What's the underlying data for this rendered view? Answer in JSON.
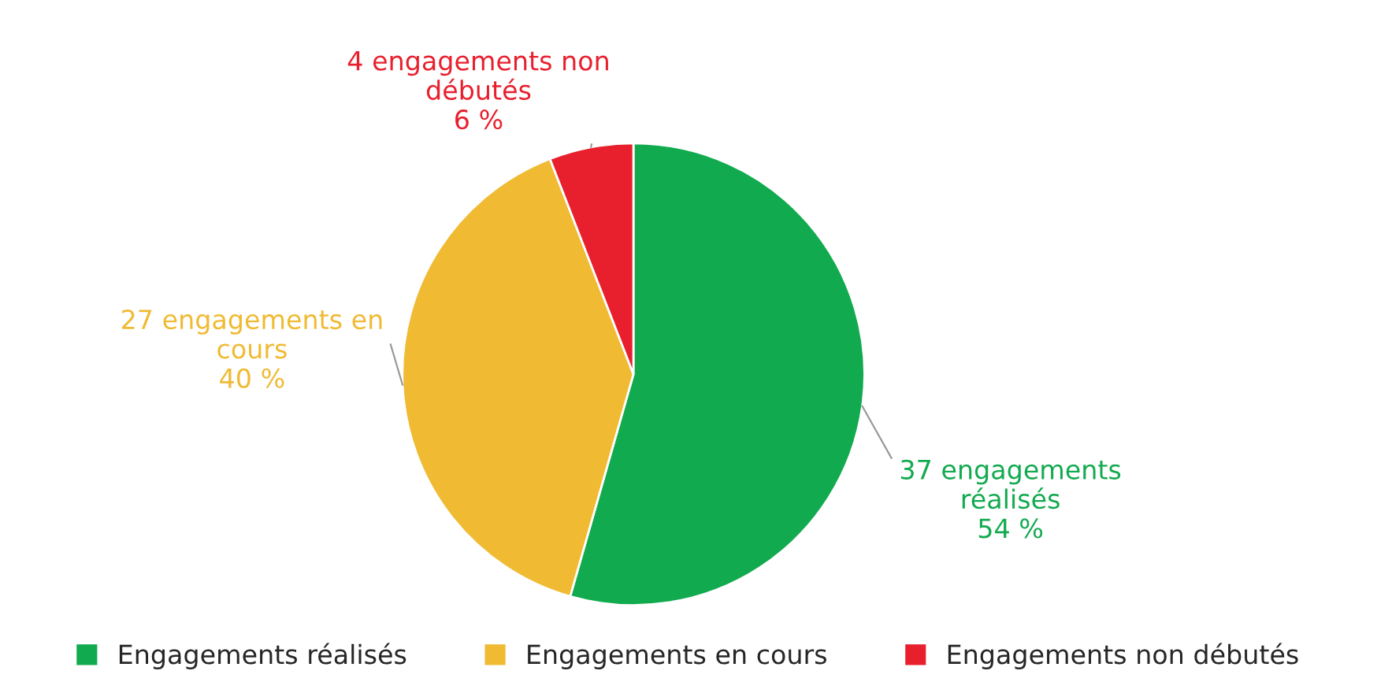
{
  "chart_data": {
    "type": "pie",
    "categories": [
      "Engagements réalisés",
      "Engagements en cours",
      "Engagements non débutés"
    ],
    "values": [
      37,
      27,
      4
    ],
    "colors": [
      "#12aa4f",
      "#f0ba32",
      "#e8202e"
    ],
    "value_labels": [
      "37 engagements\nréalisés\n54 %",
      "27 engagements en\ncours\n40 %",
      "4 engagements non\ndébutés\n6 %"
    ],
    "legend": "bottom"
  }
}
